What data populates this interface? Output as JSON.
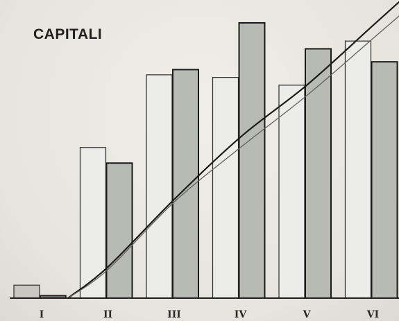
{
  "chart_data": {
    "type": "bar",
    "title": "CAPITALI",
    "categories": [
      "I",
      "II",
      "III",
      "IV",
      "V",
      "VI"
    ],
    "series": [
      {
        "values": [
          5,
          58,
          86,
          85,
          82,
          99
        ]
      },
      {
        "values": [
          1,
          52,
          88,
          106,
          96,
          91
        ]
      }
    ],
    "lines": [
      {
        "values": [
          0,
          12,
          38,
          62,
          82,
          105
        ]
      },
      {
        "values": [
          0,
          11,
          37,
          58,
          78,
          100
        ]
      }
    ],
    "ylim": [
      0,
      110
    ],
    "colors": {
      "series_light": "#ececea",
      "series_dark": "#b8bab4",
      "first_light": "#c8c6c0",
      "first_dark": "#6c6c68",
      "line_dark": "#1b1b1b",
      "line_light": "#606060"
    }
  }
}
